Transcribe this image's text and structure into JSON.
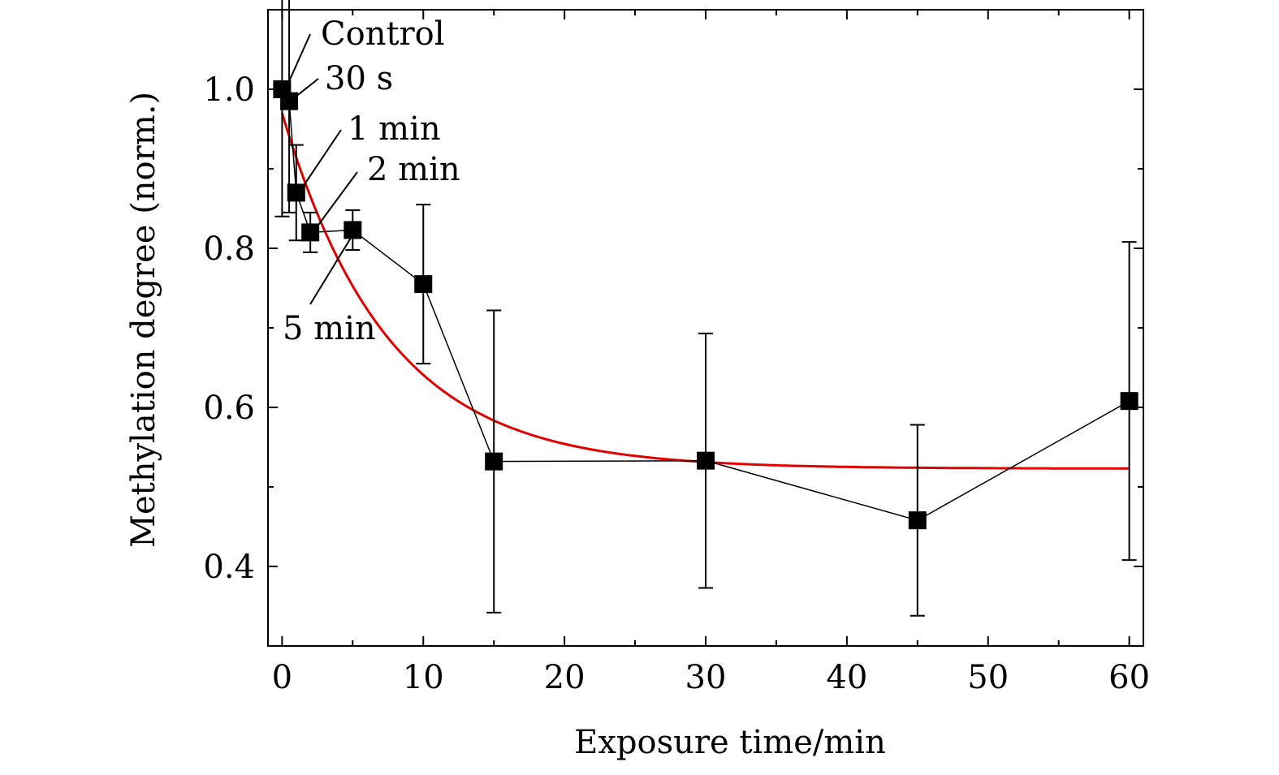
{
  "chart_data": {
    "type": "scatter",
    "xlabel": "Exposure time/min",
    "ylabel": "Methylation degree (norm.)",
    "xlim": [
      -1,
      61
    ],
    "ylim": [
      0.3,
      1.1
    ],
    "x_ticks": [
      0,
      10,
      20,
      30,
      40,
      50,
      60
    ],
    "y_ticks": [
      0.4,
      0.6,
      0.8,
      1.0
    ],
    "x_tick_labels": [
      "0",
      "10",
      "20",
      "30",
      "40",
      "50",
      "60"
    ],
    "y_tick_labels": [
      "0.4",
      "0.6",
      "0.8",
      "1.0"
    ],
    "series": [
      {
        "kind": "measured",
        "color": "#000000",
        "marker": "square",
        "points": [
          {
            "x": 0,
            "y": 1.0,
            "err": 0.16
          },
          {
            "x": 0.5,
            "y": 0.985,
            "err": 0.14
          },
          {
            "x": 1,
            "y": 0.87,
            "err": 0.06
          },
          {
            "x": 2,
            "y": 0.82,
            "err": 0.025
          },
          {
            "x": 5,
            "y": 0.823,
            "err": 0.025
          },
          {
            "x": 10,
            "y": 0.755,
            "err": 0.1
          },
          {
            "x": 15,
            "y": 0.532,
            "err": 0.19
          },
          {
            "x": 30,
            "y": 0.533,
            "err": 0.16
          },
          {
            "x": 45,
            "y": 0.458,
            "err": 0.12
          },
          {
            "x": 60,
            "y": 0.608,
            "err": 0.2
          }
        ]
      },
      {
        "kind": "exponential-fit",
        "color": "#e00000",
        "curve": {
          "y0": 0.523,
          "amplitude": 0.447,
          "tau": 7.5
        }
      }
    ],
    "annotations": [
      {
        "text": "Control",
        "x": 0
      },
      {
        "text": "30 s",
        "x": 0.5
      },
      {
        "text": "1 min",
        "x": 1
      },
      {
        "text": "2 min",
        "x": 2
      },
      {
        "text": "5 min",
        "x": 5
      }
    ],
    "grid": false,
    "legend": "none"
  }
}
